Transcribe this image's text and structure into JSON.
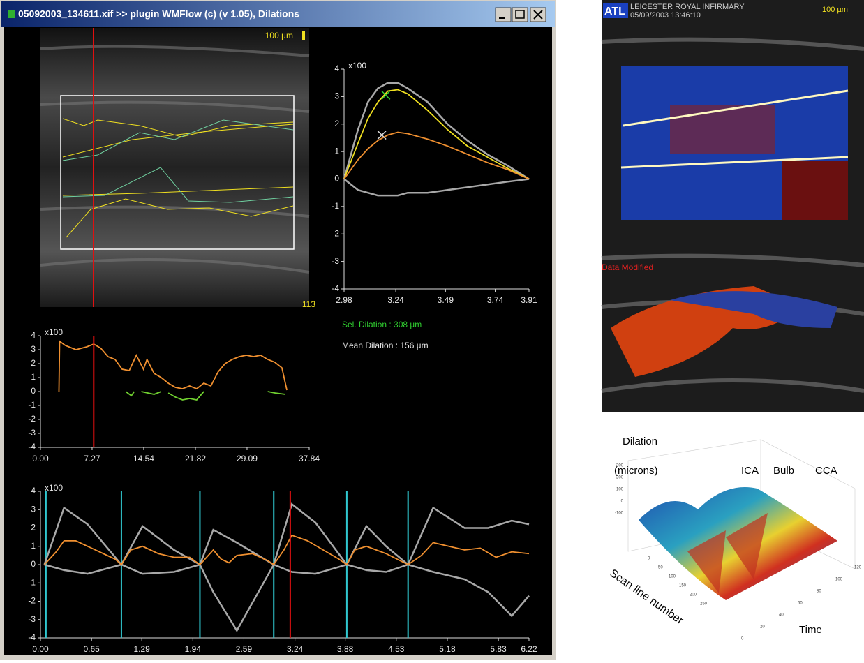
{
  "window": {
    "title": "05092003_134611.xif >> plugin WMFlow (c) (v 1.05), Dilations",
    "scale_label": "100 µm",
    "frame_number": "113",
    "sel_dilation": "Sel. Dilation : 308 µm",
    "mean_dilation": "Mean Dilation : 156 µm"
  },
  "scan_image": {
    "logo": "ATL",
    "hospital": "LEICESTER ROYAL INFIRMARY",
    "timestamp": "05/09/2003 13:46:10",
    "scale_label": "100 µm",
    "status": "Data Modified"
  },
  "surface_plot": {
    "z_label_1": "Dilation",
    "z_label_2": "(microns)",
    "region_labels": [
      "ICA",
      "Bulb",
      "CCA"
    ],
    "y_label": "Scan line number",
    "x_label": "Time",
    "z_ticks": [
      "300",
      "200",
      "100",
      "0",
      "-100"
    ],
    "y_ticks": [
      "0",
      "50",
      "100",
      "150",
      "200",
      "250"
    ],
    "x_ticks": [
      "0",
      "20",
      "40",
      "60",
      "80",
      "100",
      "120"
    ]
  },
  "chart_data": [
    {
      "type": "line",
      "ylabel": "x100",
      "xlim": [
        2.98,
        3.91
      ],
      "ylim": [
        -4,
        4
      ],
      "xticks": [
        2.98,
        3.24,
        3.49,
        3.74,
        3.91
      ],
      "yticks": [
        -4,
        -3,
        -2,
        -1,
        0,
        1,
        2,
        3,
        4
      ],
      "series": [
        {
          "color": "#a8a8a8",
          "x": [
            2.98,
            3.05,
            3.1,
            3.15,
            3.2,
            3.25,
            3.3,
            3.4,
            3.5,
            3.6,
            3.7,
            3.8,
            3.91
          ],
          "values": [
            0,
            1.8,
            2.8,
            3.3,
            3.5,
            3.5,
            3.3,
            2.8,
            2.0,
            1.4,
            0.9,
            0.5,
            0
          ]
        },
        {
          "color": "#a8a8a8",
          "x": [
            2.98,
            3.05,
            3.1,
            3.15,
            3.2,
            3.25,
            3.3,
            3.4,
            3.5,
            3.6,
            3.7,
            3.8,
            3.91
          ],
          "values": [
            0,
            -0.4,
            -0.5,
            -0.6,
            -0.6,
            -0.6,
            -0.5,
            -0.5,
            -0.4,
            -0.3,
            -0.2,
            -0.1,
            0
          ]
        },
        {
          "color": "#f0e020",
          "x": [
            2.98,
            3.05,
            3.1,
            3.15,
            3.2,
            3.25,
            3.3,
            3.4,
            3.5,
            3.6,
            3.7,
            3.8,
            3.91
          ],
          "values": [
            0,
            1.3,
            2.2,
            2.8,
            3.2,
            3.25,
            3.1,
            2.5,
            1.8,
            1.2,
            0.8,
            0.4,
            0
          ]
        },
        {
          "color": "#f09030",
          "x": [
            2.98,
            3.05,
            3.1,
            3.15,
            3.2,
            3.25,
            3.3,
            3.4,
            3.5,
            3.6,
            3.7,
            3.8,
            3.91
          ],
          "values": [
            0,
            0.7,
            1.1,
            1.4,
            1.6,
            1.7,
            1.65,
            1.45,
            1.2,
            0.9,
            0.6,
            0.35,
            0
          ]
        }
      ],
      "points": [
        {
          "x": 3.19,
          "y": 3.05,
          "color": "#30d030"
        },
        {
          "x": 3.17,
          "y": 1.6,
          "color": "#dddddd"
        }
      ]
    },
    {
      "type": "line",
      "ylabel": "x100",
      "xlim": [
        0,
        37.84
      ],
      "ylim": [
        -4,
        4
      ],
      "xticks": [
        {
          "value": 0,
          "label": "0.00"
        },
        7.27,
        14.54,
        21.82,
        29.09,
        37.84
      ],
      "yticks": [
        -4,
        -3,
        -2,
        -1,
        0,
        1,
        2,
        3,
        4
      ],
      "series": [
        {
          "color": "#f09030",
          "x": [
            2.6,
            2.7,
            3.5,
            5,
            6.5,
            7.5,
            8.5,
            9.5,
            10.5,
            11.5,
            12.5,
            13.5,
            14.5,
            15,
            16,
            17,
            18,
            19,
            20,
            21,
            22,
            23,
            24,
            25,
            26,
            27,
            28,
            29,
            30,
            31,
            32,
            33,
            34,
            34.7
          ],
          "values": [
            0,
            3.6,
            3.3,
            3.0,
            3.2,
            3.4,
            3.1,
            2.5,
            2.3,
            1.6,
            1.5,
            2.6,
            1.6,
            2.3,
            1.3,
            1.0,
            0.6,
            0.3,
            0.2,
            0.4,
            0.2,
            0.6,
            0.4,
            1.4,
            2.0,
            2.3,
            2.5,
            2.6,
            2.5,
            2.6,
            2.3,
            2.1,
            1.7,
            0.1
          ]
        },
        {
          "color": "#70d030",
          "x": [
            12,
            12.8,
            13.2,
            13.8,
            14.2,
            16,
            17,
            17.5,
            18,
            19,
            20,
            21,
            22,
            22.5,
            23,
            28,
            32,
            33,
            34.5
          ],
          "values": [
            0,
            -0.3,
            0,
            null,
            0,
            -0.2,
            0,
            null,
            -0.1,
            -0.4,
            -0.6,
            -0.5,
            -0.6,
            -0.3,
            0,
            null,
            0,
            -0.1,
            -0.2
          ]
        }
      ],
      "cursor": {
        "color": "#e01010",
        "x": 7.5
      }
    },
    {
      "type": "line",
      "ylabel": "x100",
      "xlim": [
        0,
        6.22
      ],
      "ylim": [
        -4,
        4
      ],
      "xticks": [
        {
          "value": 0,
          "label": "0.00"
        },
        0.65,
        1.29,
        1.94,
        2.59,
        3.24,
        3.88,
        4.53,
        5.18,
        5.83,
        6.22
      ],
      "yticks": [
        -4,
        -3,
        -2,
        -1,
        0,
        1,
        2,
        3,
        4
      ],
      "series": [
        {
          "color": "#a8a8a8",
          "x": [
            0.05,
            0.3,
            0.6,
            1.03,
            1.3,
            1.7,
            2.03,
            2.2,
            2.5,
            2.97,
            3.2,
            3.5,
            3.9,
            4.15,
            4.4,
            4.68,
            5.0,
            5.4,
            5.7,
            6.0,
            6.22
          ],
          "values": [
            0,
            3.1,
            2.2,
            0,
            2.1,
            0.8,
            0,
            1.9,
            1.2,
            0,
            3.3,
            2.3,
            0,
            2.1,
            1.0,
            0,
            3.1,
            2.0,
            2.0,
            2.4,
            2.2
          ]
        },
        {
          "color": "#a8a8a8",
          "x": [
            0.05,
            0.3,
            0.6,
            1.03,
            1.3,
            1.7,
            2.03,
            2.2,
            2.5,
            2.97,
            3.2,
            3.5,
            3.9,
            4.15,
            4.4,
            4.68,
            5.0,
            5.4,
            5.7,
            6.0,
            6.22
          ],
          "values": [
            0,
            -0.3,
            -0.5,
            0,
            -0.5,
            -0.4,
            0,
            -1.5,
            -3.6,
            0,
            -0.4,
            -0.5,
            0,
            -0.3,
            -0.4,
            0,
            -0.4,
            -0.8,
            -1.5,
            -2.8,
            -1.7
          ]
        },
        {
          "color": "#f09030",
          "x": [
            0.05,
            0.2,
            0.3,
            0.45,
            0.6,
            0.8,
            0.95,
            1.03,
            1.15,
            1.3,
            1.5,
            1.7,
            1.9,
            2.03,
            2.2,
            2.3,
            2.4,
            2.5,
            2.7,
            2.9,
            2.97,
            3.1,
            3.2,
            3.4,
            3.6,
            3.8,
            3.9,
            4.0,
            4.15,
            4.4,
            4.68,
            4.85,
            5.0,
            5.2,
            5.4,
            5.6,
            5.8,
            6.0,
            6.22
          ],
          "values": [
            0,
            0.7,
            1.3,
            1.3,
            1.0,
            0.6,
            0.3,
            0,
            0.8,
            1.0,
            0.6,
            0.4,
            0.4,
            0,
            0.8,
            0.3,
            0.1,
            0.5,
            0.6,
            0.2,
            0,
            0.8,
            1.6,
            1.3,
            0.8,
            0.3,
            0,
            0.8,
            1.0,
            0.6,
            0,
            0.5,
            1.2,
            1.0,
            0.8,
            0.9,
            0.4,
            0.7,
            0.6
          ]
        }
      ],
      "markers": {
        "color": "#30c8d0",
        "x": [
          0.07,
          1.03,
          2.03,
          2.97,
          3.9,
          4.68
        ]
      },
      "cursor": {
        "color": "#e01010",
        "x": 3.18
      }
    }
  ]
}
